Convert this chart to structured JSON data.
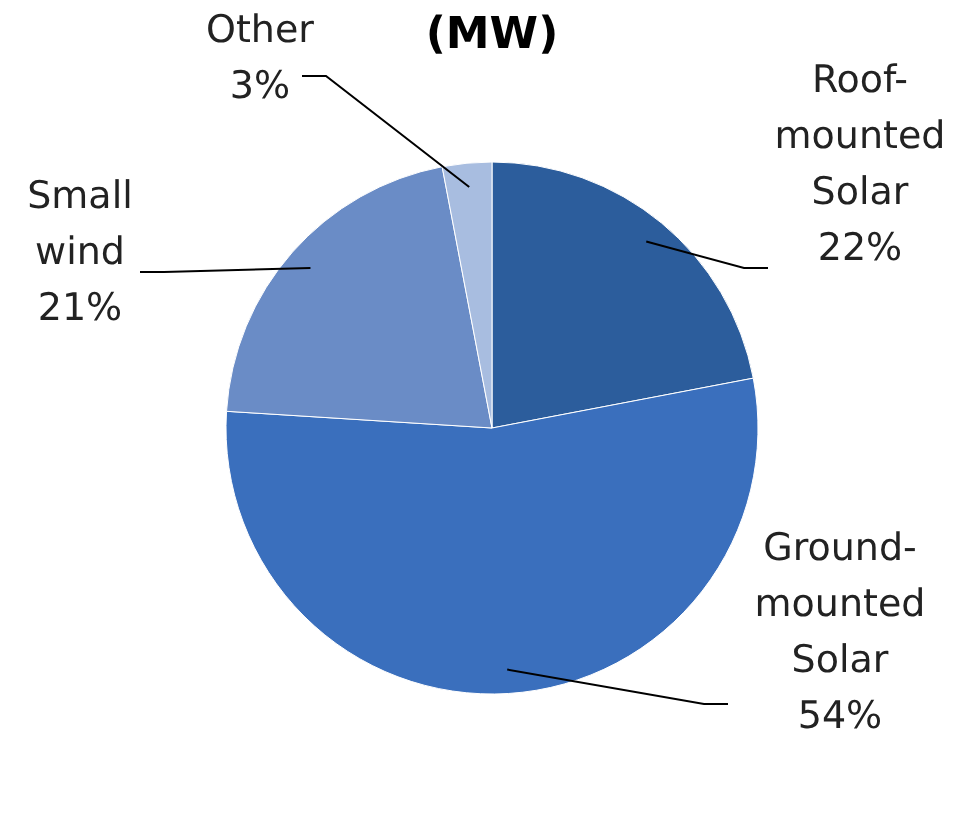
{
  "chart_data": {
    "type": "pie",
    "title": "(MW)",
    "categories": [
      "Roof-mounted Solar",
      "Ground-mounted Solar",
      "Small wind",
      "Other"
    ],
    "values": [
      22,
      54,
      21,
      3
    ],
    "value_labels": [
      "22%",
      "54%",
      "21%",
      "3%"
    ],
    "colors": [
      "#2c5d9c",
      "#3a6fbd",
      "#6a8cc6",
      "#a8bde0"
    ]
  }
}
